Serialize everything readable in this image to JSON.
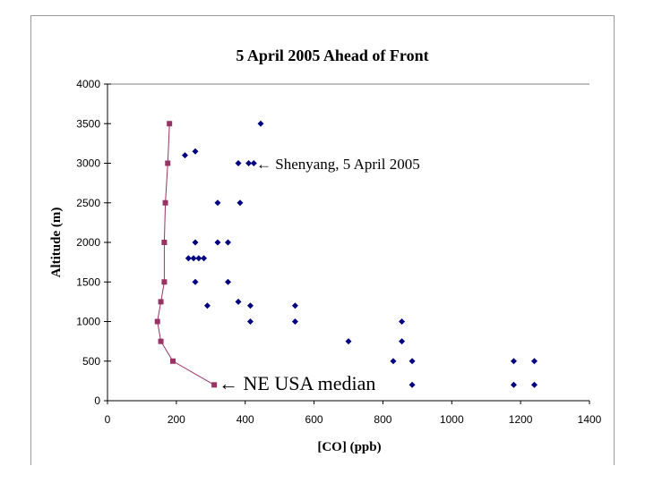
{
  "chart_data": {
    "type": "scatter",
    "title": "5 April 2005 Ahead of Front",
    "xlabel": "[CO] (ppb)",
    "ylabel": "Altitude (m)",
    "xlim": [
      0,
      1400
    ],
    "ylim": [
      0,
      4000
    ],
    "xticks": [
      0,
      200,
      400,
      600,
      800,
      1000,
      1200,
      1400
    ],
    "yticks": [
      0,
      500,
      1000,
      1500,
      2000,
      2500,
      3000,
      3500,
      4000
    ],
    "grid": false,
    "colors": {
      "shenyang": "#000080",
      "median": "#993366"
    },
    "series": [
      {
        "name": "Shenyang, 5 April 2005",
        "marker": "diamond",
        "points": [
          [
            445,
            3500
          ],
          [
            225,
            3100
          ],
          [
            255,
            3150
          ],
          [
            380,
            3000
          ],
          [
            410,
            3000
          ],
          [
            425,
            3000
          ],
          [
            320,
            2500
          ],
          [
            385,
            2500
          ],
          [
            255,
            2000
          ],
          [
            320,
            2000
          ],
          [
            350,
            2000
          ],
          [
            235,
            1800
          ],
          [
            250,
            1800
          ],
          [
            265,
            1800
          ],
          [
            280,
            1800
          ],
          [
            255,
            1500
          ],
          [
            350,
            1500
          ],
          [
            290,
            1200
          ],
          [
            380,
            1250
          ],
          [
            415,
            1200
          ],
          [
            545,
            1200
          ],
          [
            415,
            1000
          ],
          [
            545,
            1000
          ],
          [
            855,
            1000
          ],
          [
            700,
            750
          ],
          [
            855,
            750
          ],
          [
            830,
            500
          ],
          [
            885,
            500
          ],
          [
            1180,
            500
          ],
          [
            1240,
            500
          ],
          [
            885,
            200
          ],
          [
            1180,
            200
          ],
          [
            1240,
            200
          ]
        ]
      },
      {
        "name": "NE USA median",
        "marker": "square",
        "line": true,
        "points": [
          [
            310,
            200
          ],
          [
            190,
            500
          ],
          [
            155,
            750
          ],
          [
            145,
            1000
          ],
          [
            155,
            1250
          ],
          [
            165,
            1500
          ],
          [
            165,
            2000
          ],
          [
            168,
            2500
          ],
          [
            175,
            3000
          ],
          [
            180,
            3500
          ]
        ]
      }
    ],
    "annotations": [
      {
        "text": "← Shenyang, 5 April 2005"
      },
      {
        "text": "← NE USA median"
      }
    ]
  }
}
